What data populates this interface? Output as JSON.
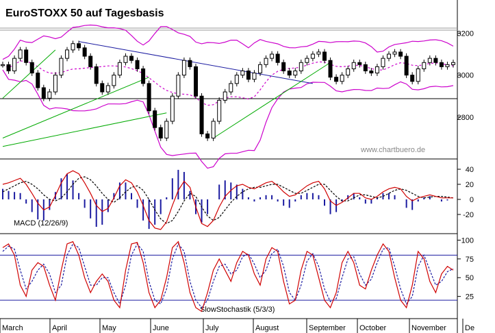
{
  "chart_data": {
    "type": "line",
    "title": "EuroSTOXX 50 auf Tagesbasis",
    "source": "www.chartbuero.de",
    "x_labels": [
      "March",
      "April",
      "May",
      "June",
      "July",
      "August",
      "September",
      "October",
      "November",
      "De"
    ],
    "colors": {
      "price": "#000000",
      "band": "#cc00cc",
      "trend_down": "#1a1aa0",
      "trend_up": "#00aa00",
      "macd": "#d00000",
      "signal": "#000000",
      "hist": "#1a1aa0",
      "stoch_k": "#d00000",
      "stoch_d": "#1a1aa0",
      "level": "#1a1aa0"
    },
    "panels": [
      {
        "name": "price",
        "ylim": [
          2620,
          3260
        ],
        "y_ticks": [
          2800,
          3000,
          3200
        ],
        "close": [
          3050,
          3020,
          3080,
          3120,
          3060,
          3010,
          2940,
          2890,
          2920,
          3000,
          3080,
          3120,
          3150,
          3130,
          3090,
          3040,
          2960,
          2920,
          2950,
          3000,
          3060,
          3090,
          3070,
          3030,
          2960,
          2830,
          2750,
          2700,
          2780,
          2900,
          3000,
          3070,
          3040,
          2900,
          2720,
          2700,
          2780,
          2880,
          2920,
          2960,
          3000,
          3020,
          2980,
          3010,
          3050,
          3080,
          3100,
          3060,
          3020,
          3000,
          3020,
          3060,
          3080,
          3100,
          3110,
          3070,
          2990,
          2970,
          3000,
          3030,
          3060,
          3050,
          3020,
          3010,
          3040,
          3080,
          3100,
          3110,
          3090,
          3000,
          2970,
          3030,
          3060,
          3080,
          3060,
          3040,
          3050,
          3060
        ]
      },
      {
        "name": "MACD (12/26/9)",
        "label": "MACD (12/26/9)",
        "ylim": [
          -40,
          50
        ],
        "y_ticks": [
          40,
          20,
          0,
          -20
        ],
        "macd": [
          20,
          22,
          25,
          28,
          20,
          8,
          -5,
          -14,
          -10,
          5,
          22,
          34,
          38,
          34,
          22,
          8,
          -8,
          -16,
          -12,
          2,
          18,
          26,
          22,
          10,
          -8,
          -28,
          -38,
          -40,
          -30,
          -8,
          12,
          24,
          16,
          -10,
          -32,
          -36,
          -28,
          -10,
          4,
          12,
          18,
          20,
          16,
          14,
          18,
          22,
          24,
          18,
          10,
          4,
          6,
          12,
          18,
          22,
          24,
          14,
          -2,
          -8,
          -4,
          2,
          8,
          8,
          2,
          0,
          4,
          10,
          14,
          16,
          14,
          4,
          -2,
          2,
          4,
          6,
          4,
          2,
          2,
          2
        ],
        "signal": [
          10,
          14,
          18,
          22,
          24,
          20,
          14,
          6,
          0,
          -2,
          2,
          10,
          20,
          28,
          30,
          26,
          18,
          8,
          0,
          -4,
          2,
          10,
          16,
          18,
          12,
          0,
          -14,
          -26,
          -32,
          -28,
          -16,
          -2,
          8,
          4,
          -10,
          -22,
          -28,
          -24,
          -14,
          -4,
          4,
          10,
          14,
          16,
          16,
          18,
          20,
          20,
          16,
          12,
          8,
          8,
          12,
          16,
          20,
          20,
          12,
          4,
          -2,
          -2,
          2,
          6,
          6,
          4,
          2,
          4,
          8,
          12,
          14,
          12,
          8,
          4,
          2,
          3,
          4,
          4,
          3,
          2
        ]
      },
      {
        "name": "Slow Stochastik (5/3/3)",
        "label": "SlowStochastik (5/3/3)",
        "ylim": [
          0,
          105
        ],
        "y_ticks": [
          100,
          75,
          50,
          25
        ],
        "levels": [
          80,
          20
        ],
        "k": [
          90,
          95,
          80,
          40,
          25,
          60,
          70,
          65,
          40,
          20,
          60,
          95,
          98,
          80,
          50,
          30,
          45,
          55,
          45,
          20,
          10,
          60,
          95,
          97,
          70,
          30,
          10,
          20,
          50,
          90,
          98,
          70,
          30,
          10,
          5,
          30,
          60,
          75,
          60,
          45,
          70,
          85,
          80,
          55,
          40,
          75,
          90,
          85,
          45,
          15,
          20,
          60,
          85,
          80,
          50,
          20,
          10,
          30,
          70,
          85,
          70,
          40,
          35,
          60,
          80,
          95,
          85,
          50,
          20,
          10,
          40,
          85,
          75,
          45,
          30,
          55,
          65,
          60
        ],
        "d": [
          85,
          92,
          88,
          60,
          35,
          45,
          60,
          68,
          55,
          30,
          40,
          80,
          95,
          90,
          65,
          40,
          40,
          50,
          50,
          30,
          15,
          40,
          80,
          95,
          85,
          45,
          20,
          15,
          35,
          75,
          95,
          85,
          45,
          20,
          10,
          20,
          45,
          65,
          68,
          55,
          60,
          78,
          82,
          68,
          50,
          60,
          82,
          88,
          65,
          30,
          20,
          40,
          72,
          82,
          65,
          35,
          18,
          22,
          50,
          75,
          78,
          55,
          40,
          48,
          70,
          88,
          90,
          65,
          35,
          15,
          25,
          65,
          80,
          60,
          40,
          45,
          58,
          62
        ]
      }
    ]
  }
}
